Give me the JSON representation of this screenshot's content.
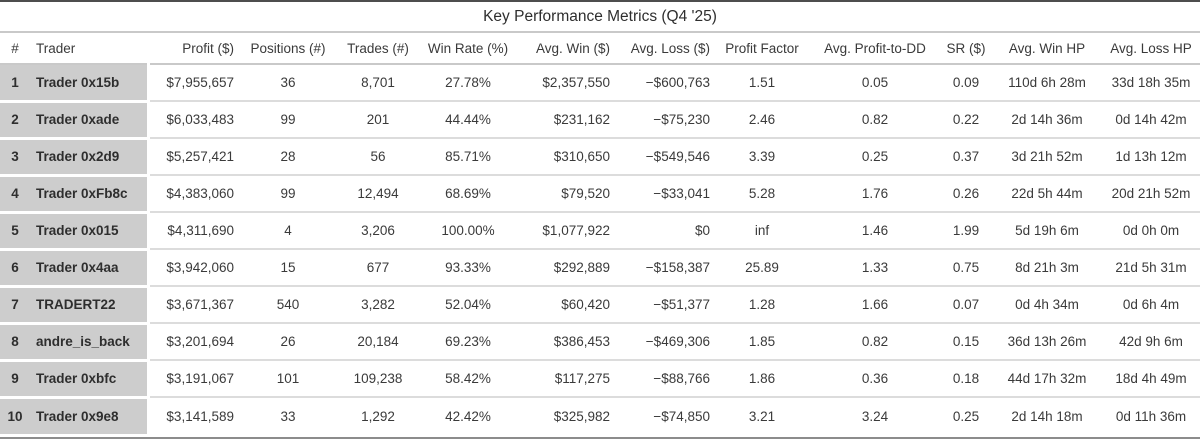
{
  "page_title": "Key Performance Metrics (Q4 '25)",
  "colors": {
    "row_header_background": "#cdcdcd",
    "top_border": "#4d4d4d",
    "bottom_border": "#8c8c8c",
    "separator": "#c9c9c9",
    "row_separator": "#dcdcdc",
    "text": "#3a3a3a"
  },
  "chart_data": {
    "type": "table",
    "title": "Key Performance Metrics (Q4 '25)",
    "columns": [
      {
        "key": "rank",
        "label": "#",
        "align": "center",
        "width": 30
      },
      {
        "key": "trader",
        "label": "Trader",
        "align": "left",
        "width": 118
      },
      {
        "key": "profit",
        "label": "Profit ($)",
        "align": "right",
        "width": 90
      },
      {
        "key": "positions",
        "label": "Positions (#)",
        "align": "center",
        "width": 100
      },
      {
        "key": "trades",
        "label": "Trades (#)",
        "align": "center",
        "width": 80
      },
      {
        "key": "win_rate",
        "label": "Win Rate (%)",
        "align": "center",
        "width": 100
      },
      {
        "key": "avg_win",
        "label": "Avg. Win ($)",
        "align": "right",
        "width": 96
      },
      {
        "key": "avg_loss",
        "label": "Avg. Loss ($)",
        "align": "right",
        "width": 100
      },
      {
        "key": "profit_factor",
        "label": "Profit Factor",
        "align": "center",
        "width": 96
      },
      {
        "key": "avg_profit_to_dd",
        "label": "Avg. Profit-to-DD",
        "align": "center",
        "width": 130
      },
      {
        "key": "sr",
        "label": "SR ($)",
        "align": "center",
        "width": 52
      },
      {
        "key": "avg_win_hp",
        "label": "Avg. Win HP",
        "align": "center",
        "width": 110
      },
      {
        "key": "avg_loss_hp",
        "label": "Avg. Loss HP",
        "align": "center",
        "width": 98
      }
    ],
    "rows": [
      [
        "1",
        "Trader 0x15b",
        "$7,955,657",
        "36",
        "8,701",
        "27.78%",
        "$2,357,550",
        "−$600,763",
        "1.51",
        "0.05",
        "0.09",
        "110d 6h 28m",
        "33d 18h 35m"
      ],
      [
        "2",
        "Trader 0xade",
        "$6,033,483",
        "99",
        "201",
        "44.44%",
        "$231,162",
        "−$75,230",
        "2.46",
        "0.82",
        "0.22",
        "2d 14h 36m",
        "0d 14h 42m"
      ],
      [
        "3",
        "Trader 0x2d9",
        "$5,257,421",
        "28",
        "56",
        "85.71%",
        "$310,650",
        "−$549,546",
        "3.39",
        "0.25",
        "0.37",
        "3d 21h 52m",
        "1d 13h 12m"
      ],
      [
        "4",
        "Trader 0xFb8c",
        "$4,383,060",
        "99",
        "12,494",
        "68.69%",
        "$79,520",
        "−$33,041",
        "5.28",
        "1.76",
        "0.26",
        "22d 5h 44m",
        "20d 21h 52m"
      ],
      [
        "5",
        "Trader 0x015",
        "$4,311,690",
        "4",
        "3,206",
        "100.00%",
        "$1,077,922",
        "$0",
        "inf",
        "1.46",
        "1.99",
        "5d 19h 6m",
        "0d 0h 0m"
      ],
      [
        "6",
        "Trader 0x4aa",
        "$3,942,060",
        "15",
        "677",
        "93.33%",
        "$292,889",
        "−$158,387",
        "25.89",
        "1.33",
        "0.75",
        "8d 21h 3m",
        "21d 5h 31m"
      ],
      [
        "7",
        "TRADERT22",
        "$3,671,367",
        "540",
        "3,282",
        "52.04%",
        "$60,420",
        "−$51,377",
        "1.28",
        "1.66",
        "0.07",
        "0d 4h 34m",
        "0d 6h 4m"
      ],
      [
        "8",
        "andre_is_back",
        "$3,201,694",
        "26",
        "20,184",
        "69.23%",
        "$386,453",
        "−$469,306",
        "1.85",
        "0.82",
        "0.15",
        "36d 13h 26m",
        "42d 9h 6m"
      ],
      [
        "9",
        "Trader 0xbfc",
        "$3,191,067",
        "101",
        "109,238",
        "58.42%",
        "$117,275",
        "−$88,766",
        "1.86",
        "0.36",
        "0.18",
        "44d 17h 32m",
        "18d 4h 49m"
      ],
      [
        "10",
        "Trader 0x9e8",
        "$3,141,589",
        "33",
        "1,292",
        "42.42%",
        "$325,982",
        "−$74,850",
        "3.21",
        "3.24",
        "0.25",
        "2d 14h 18m",
        "0d 11h 36m"
      ]
    ]
  }
}
